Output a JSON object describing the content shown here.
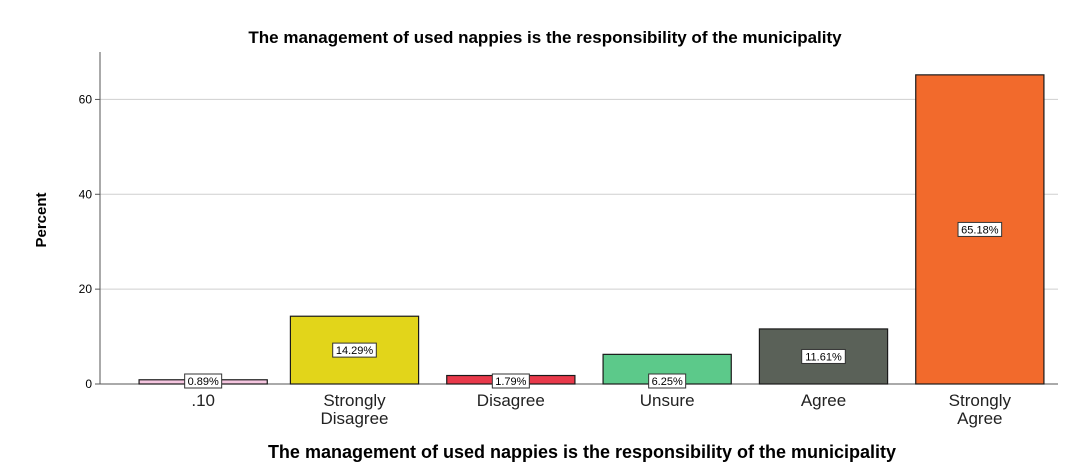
{
  "chart_data": {
    "type": "bar",
    "title": "The management of used nappies is the responsibility of the municipality",
    "xlabel": "The management of used nappies is the responsibility of the municipality",
    "ylabel": "Percent",
    "ylim": [
      0,
      70
    ],
    "yticks": [
      0,
      20,
      40,
      60
    ],
    "grid": true,
    "categories": [
      ".10",
      "Strongly Disagree",
      "Disagree",
      "Unsure",
      "Agree",
      "Strongly Agree"
    ],
    "category_lines": [
      [
        ".10"
      ],
      [
        "Strongly",
        "Disagree"
      ],
      [
        "Disagree"
      ],
      [
        "Unsure"
      ],
      [
        "Agree"
      ],
      [
        "Strongly",
        "Agree"
      ]
    ],
    "values": [
      0.89,
      14.29,
      1.79,
      6.25,
      11.61,
      65.18
    ],
    "data_labels": [
      "0.89%",
      "14.29%",
      "1.79%",
      "6.25%",
      "11.61%",
      "65.18%"
    ],
    "colors": [
      "#f5c6e0",
      "#e2d51a",
      "#e8394a",
      "#5cc98a",
      "#5a6158",
      "#f26a2c"
    ]
  }
}
